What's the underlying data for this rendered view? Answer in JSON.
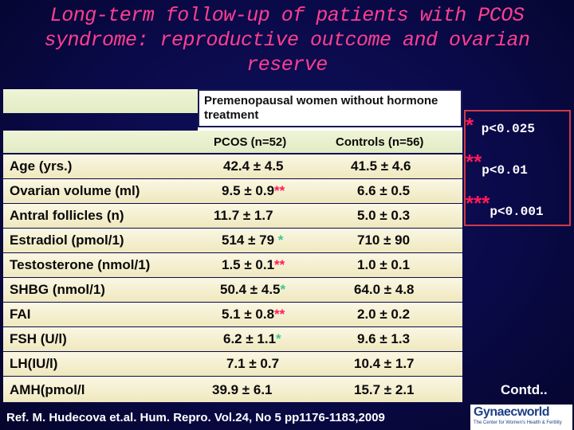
{
  "title": {
    "line1": "Long-term follow-up of patients with PCOS",
    "line2": "syndrome: reproductive outcome and ovarian",
    "line3": "reserve"
  },
  "table": {
    "group_header": "Premenopausal women without hormone treatment",
    "col_pcos": "PCOS (n=52)",
    "col_controls": "Controls (n=56)",
    "rows": [
      {
        "label": "Age (yrs.)",
        "pcos": "42.4 ± 4.5",
        "pcos_mark": "",
        "controls": "41.5 ± 4.6"
      },
      {
        "label": "Ovarian volume (ml)",
        "pcos": "9.5 ± 0.9",
        "pcos_mark": "**",
        "controls": "6.6 ± 0.5"
      },
      {
        "label": "Antral follicles (n)",
        "pcos": "11.7 ± 1.7",
        "pcos_mark": "",
        "controls": "5.0 ± 0.3"
      },
      {
        "label": "Estradiol (pmol/1)",
        "pcos": "514 ± 79",
        "pcos_mark": " *",
        "controls": "710 ± 90"
      },
      {
        "label": "Testosterone (nmol/1)",
        "pcos": "1.5 ± 0.1",
        "pcos_mark": "**",
        "controls": "1.0 ± 0.1"
      },
      {
        "label": "SHBG (nmol/1)",
        "pcos": "50.4 ± 4.5",
        "pcos_mark": "*",
        "controls": "64.0 ± 4.8"
      },
      {
        "label": "FAI",
        "pcos": "5.1 ± 0.8",
        "pcos_mark": "**",
        "controls": "2.0 ± 0.2"
      },
      {
        "label": "FSH (U/l)",
        "pcos": "6.2 ± 1.1",
        "pcos_mark": "*",
        "controls": "9.6 ± 1.3"
      },
      {
        "label": "LH(IU/l)",
        "pcos": "7.1 ± 0.7",
        "pcos_mark": "",
        "controls": "10.4 ± 1.7"
      },
      {
        "label": "AMH(pmol/l",
        "pcos": "39.9 ± 6.1",
        "pcos_mark": "",
        "controls": "15.7 ± 2.1"
      }
    ]
  },
  "legend": {
    "one_star": "*",
    "one_star_text": "p<0.025",
    "two_star": "**",
    "two_star_text": "p<0.01",
    "three_star": "***",
    "three_star_text": "p<0.001"
  },
  "reference": "Ref. M. Hudecova et.al. Hum. Repro. Vol.24, No 5 pp1176-1183,2009",
  "contd": "Contd..",
  "logo": {
    "name": "Gynaecworld",
    "tagline": "The Center for Women's Health & Fertility"
  },
  "colors": {
    "title": "#ff3f8f",
    "star_red": "#ff1a5a",
    "star_green": "#3ec78c"
  }
}
